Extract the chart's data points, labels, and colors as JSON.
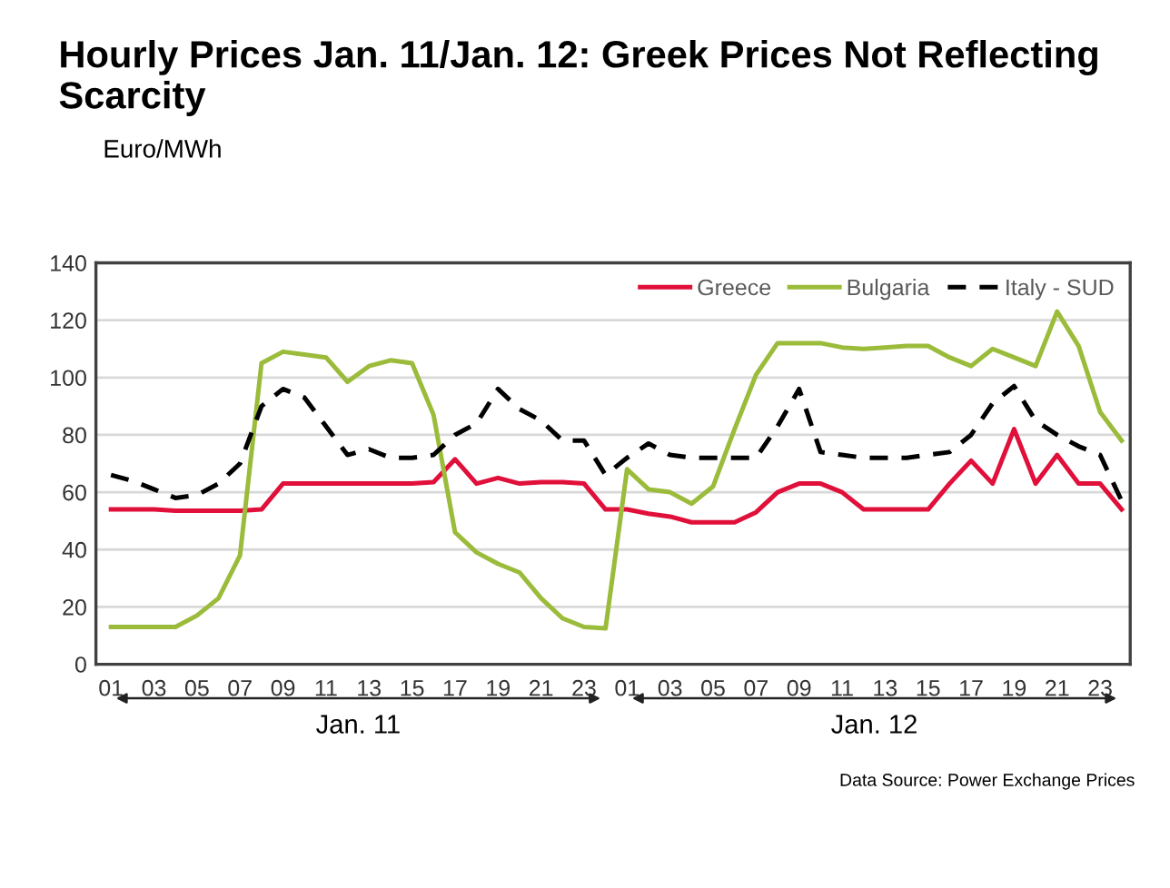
{
  "chart_data": {
    "type": "line",
    "title": "Hourly Prices Jan. 11/Jan. 12: Greek Prices Not Reflecting Scarcity",
    "ylabel": "Euro/MWh",
    "categories": [
      "01",
      null,
      "03",
      null,
      "05",
      null,
      "07",
      null,
      "09",
      null,
      "11",
      null,
      "13",
      null,
      "15",
      null,
      "17",
      null,
      "19",
      null,
      "21",
      null,
      "23",
      null,
      "01",
      null,
      "03",
      null,
      "05",
      null,
      "07",
      null,
      "09",
      null,
      "11",
      null,
      "13",
      null,
      "15",
      null,
      "17",
      null,
      "19",
      null,
      "21",
      null,
      "23",
      null
    ],
    "series": [
      {
        "name": "Greece",
        "color": "#e0103a",
        "line_style": "solid",
        "values": [
          54,
          54,
          54,
          53.5,
          53.5,
          53.5,
          53.5,
          54,
          63,
          63,
          63,
          63,
          63,
          63,
          63,
          63.5,
          71.5,
          63,
          65,
          63,
          63.5,
          63.5,
          63,
          54,
          54,
          52.5,
          51.5,
          49.5,
          49.5,
          49.5,
          53,
          60,
          63,
          63,
          60,
          54,
          54,
          54,
          54,
          63,
          71,
          63,
          82,
          63,
          73,
          63,
          63,
          54
        ]
      },
      {
        "name": "Bulgaria",
        "color": "#9bbb3b",
        "line_style": "solid",
        "values": [
          13,
          13,
          13,
          13,
          17,
          23,
          38,
          105,
          109,
          108,
          107,
          98.5,
          104,
          106,
          105,
          87,
          46,
          39,
          35,
          32,
          23,
          16,
          13,
          12.5,
          68,
          61,
          60,
          56,
          62,
          82,
          101,
          112,
          112,
          112,
          110.5,
          110,
          110.5,
          111,
          111,
          107,
          104,
          110,
          107,
          104,
          123,
          111,
          88,
          78
        ]
      },
      {
        "name": "Italy - SUD",
        "color": "#000000",
        "line_style": "dashed",
        "values": [
          66,
          64,
          61,
          58,
          59,
          63,
          70,
          90,
          96,
          93,
          83,
          73,
          75,
          72,
          72,
          73,
          80,
          84,
          96,
          89,
          85,
          78,
          78,
          66,
          72,
          77,
          73,
          72,
          72,
          72,
          72,
          83,
          96,
          74,
          73,
          72,
          72,
          72,
          73,
          74,
          80,
          91,
          97,
          85,
          80,
          76,
          73,
          57
        ]
      }
    ],
    "ylim": [
      0,
      140
    ],
    "yticks": [
      0,
      20,
      40,
      60,
      80,
      100,
      120,
      140
    ],
    "grid": "y",
    "legend": "top right",
    "marker": "none",
    "annotations": [
      "Jan. 11",
      "Jan. 12",
      "Data Source: Power Exchange Prices"
    ]
  }
}
